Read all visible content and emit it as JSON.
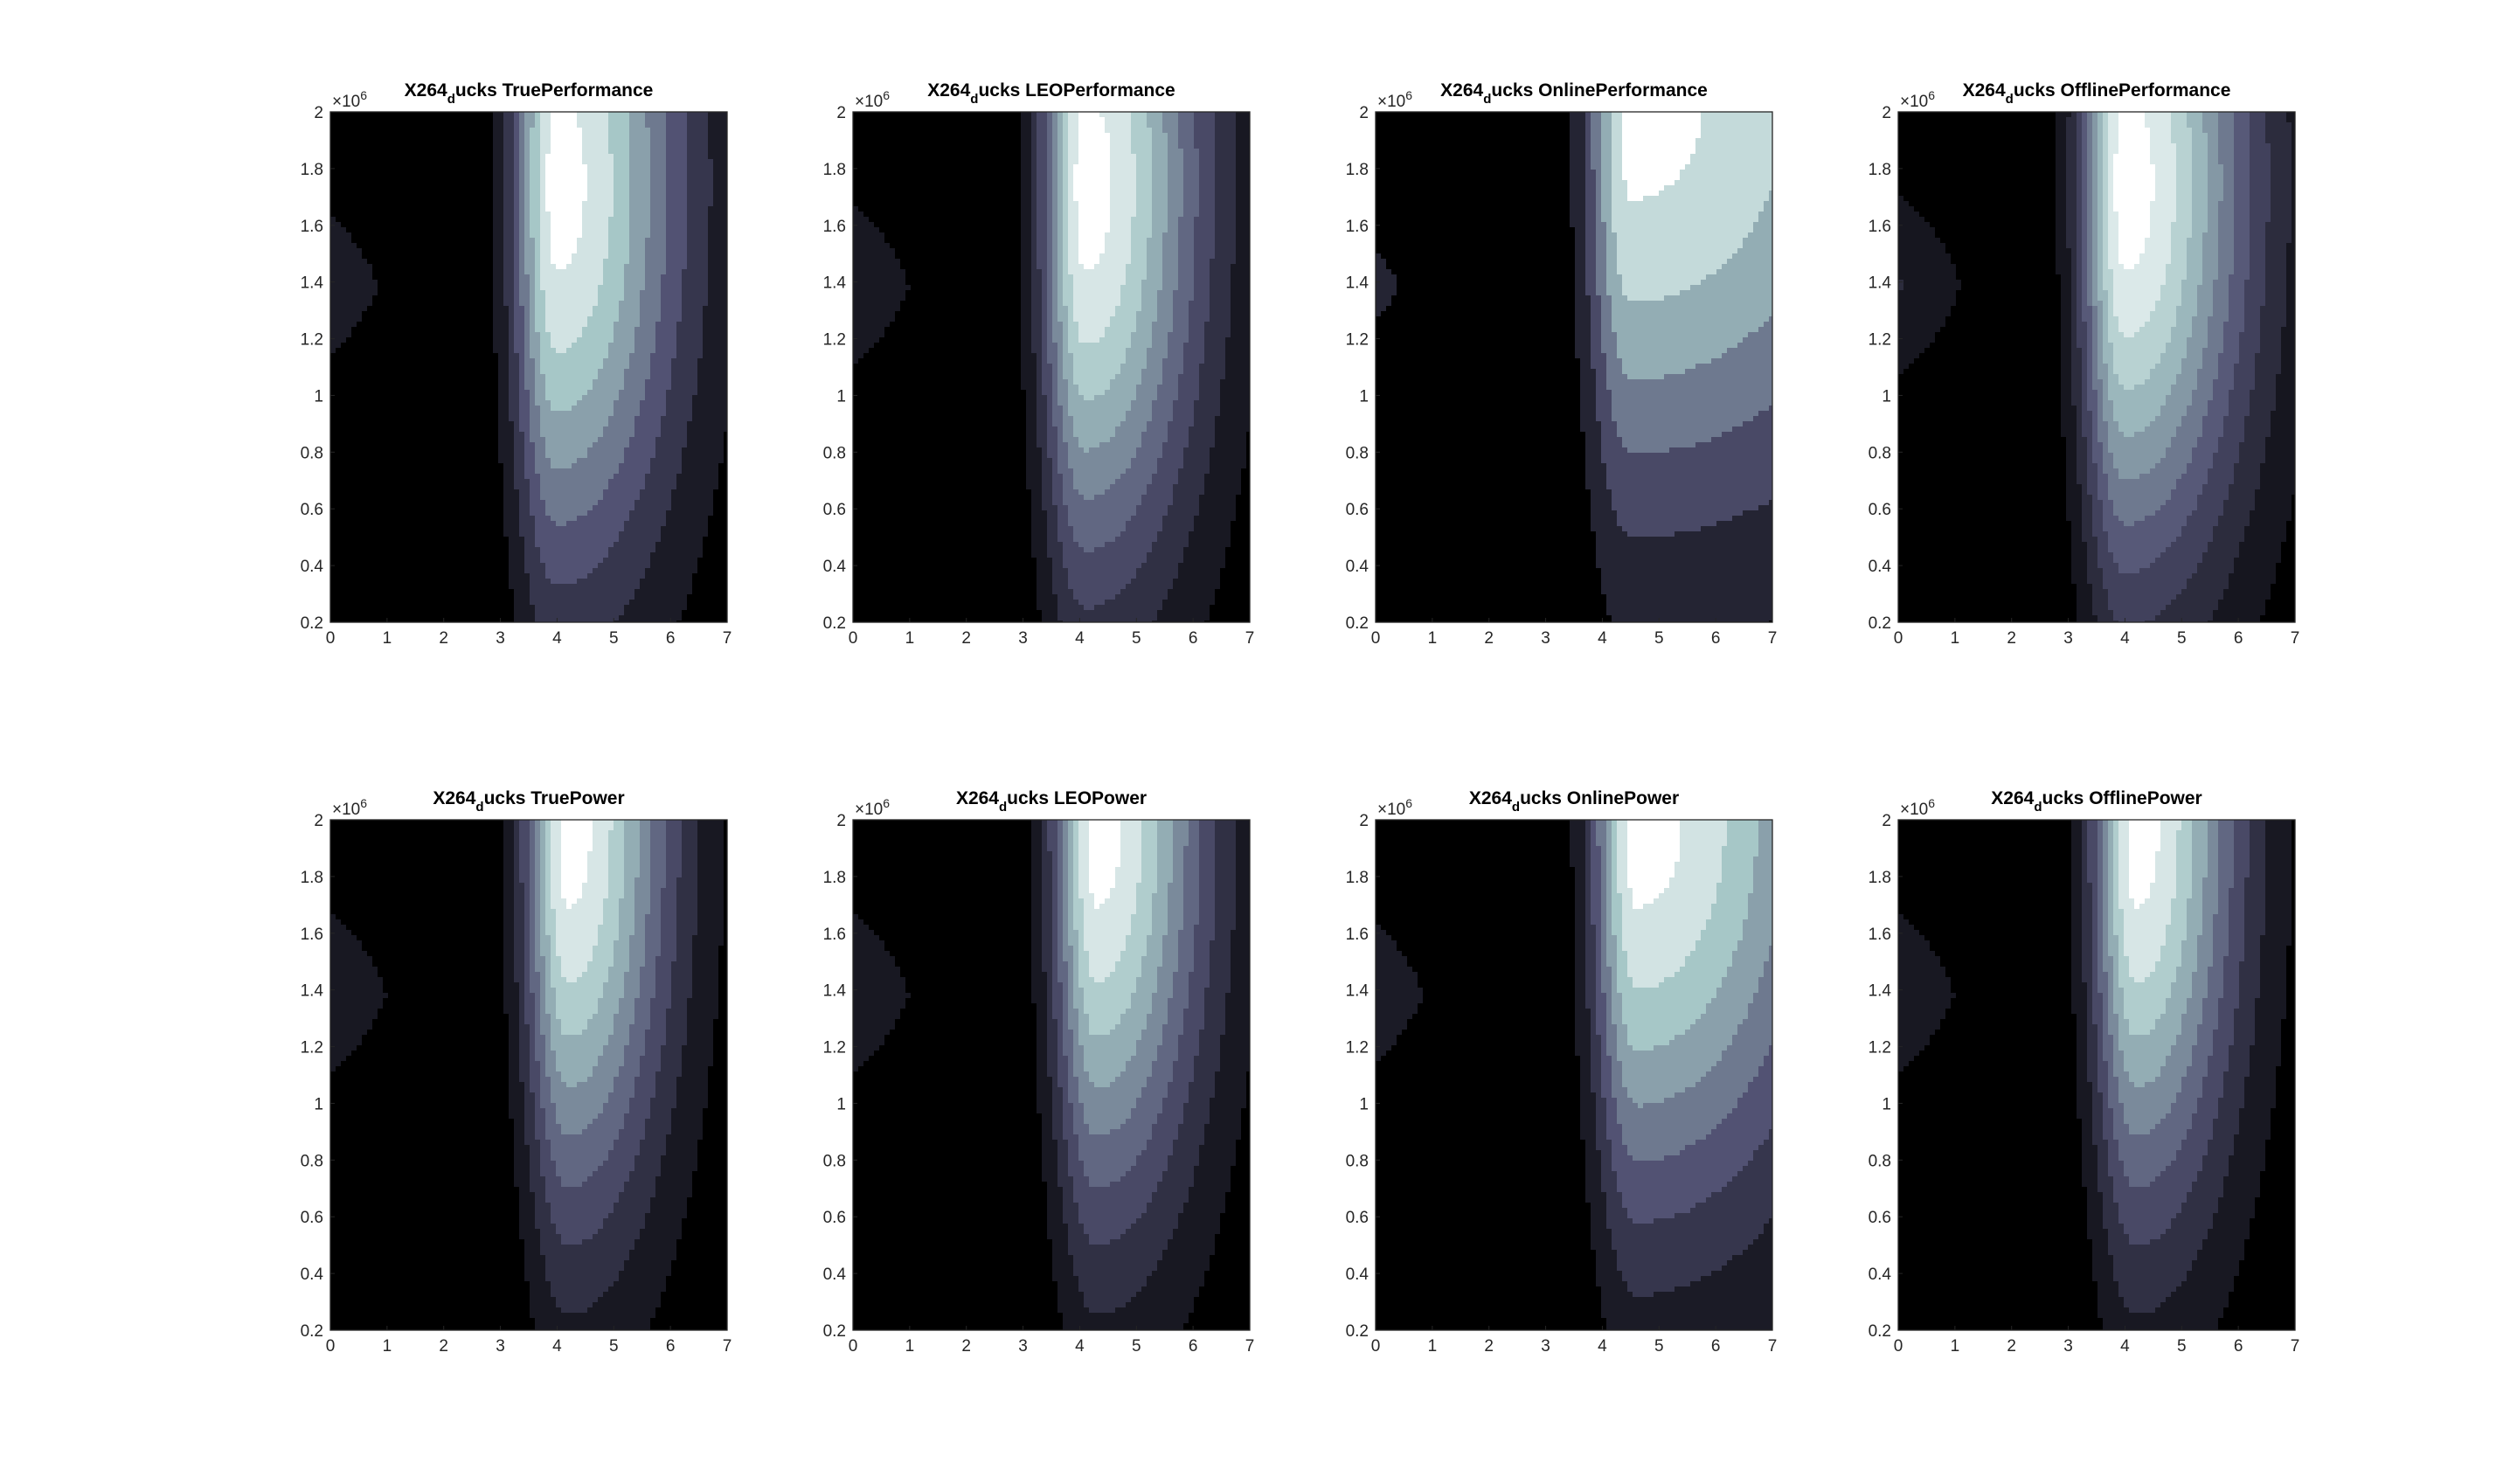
{
  "window_title": "",
  "chart_data": [
    {
      "type": "contour",
      "title_prefix": "X264",
      "title_subscript": "d",
      "title_suffix": "ucks TruePerformance",
      "xlabel": "",
      "ylabel": "",
      "xlim": [
        0,
        7
      ],
      "ylim": [
        200000,
        2000000
      ],
      "xticks": [
        "0",
        "1",
        "2",
        "3",
        "4",
        "5",
        "6",
        "7"
      ],
      "yticks": [
        "0.2",
        "0.4",
        "0.6",
        "0.8",
        "1",
        "1.2",
        "1.4",
        "1.6",
        "1.8",
        "2"
      ],
      "y_exponent_base": "×10",
      "y_exponent": "6",
      "colormap": "bone",
      "ridge_x": 4.0,
      "peak_y": 1750000,
      "spread_right": 1.6,
      "levels": 8
    },
    {
      "type": "contour",
      "title_prefix": "X264",
      "title_subscript": "d",
      "title_suffix": "ucks LEOPerformance",
      "xlabel": "",
      "ylabel": "",
      "xlim": [
        0,
        7
      ],
      "ylim": [
        200000,
        2000000
      ],
      "xticks": [
        "0",
        "1",
        "2",
        "3",
        "4",
        "5",
        "6",
        "7"
      ],
      "yticks": [
        "0.2",
        "0.4",
        "0.6",
        "0.8",
        "1",
        "1.2",
        "1.4",
        "1.6",
        "1.8",
        "2"
      ],
      "y_exponent_base": "×10",
      "y_exponent": "6",
      "colormap": "bone",
      "ridge_x": 4.1,
      "peak_y": 1750000,
      "spread_right": 1.5,
      "levels": 9
    },
    {
      "type": "contour",
      "title_prefix": "X264",
      "title_subscript": "d",
      "title_suffix": "ucks OnlinePerformance",
      "xlabel": "",
      "ylabel": "",
      "xlim": [
        0,
        7
      ],
      "ylim": [
        200000,
        2000000
      ],
      "xticks": [
        "0",
        "1",
        "2",
        "3",
        "4",
        "5",
        "6",
        "7"
      ],
      "yticks": [
        "0.2",
        "0.4",
        "0.6",
        "0.8",
        "1",
        "1.2",
        "1.4",
        "1.6",
        "1.8",
        "2"
      ],
      "y_exponent_base": "×10",
      "y_exponent": "6",
      "colormap": "bone",
      "ridge_x": 4.5,
      "peak_y": 2000000,
      "spread_right": 4.0,
      "levels": 6
    },
    {
      "type": "contour",
      "title_prefix": "X264",
      "title_subscript": "d",
      "title_suffix": "ucks OfflinePerformance",
      "xlabel": "",
      "ylabel": "",
      "xlim": [
        0,
        7
      ],
      "ylim": [
        200000,
        2000000
      ],
      "xticks": [
        "0",
        "1",
        "2",
        "3",
        "4",
        "5",
        "6",
        "7"
      ],
      "yticks": [
        "0.2",
        "0.4",
        "0.6",
        "0.8",
        "1",
        "1.2",
        "1.4",
        "1.6",
        "1.8",
        "2"
      ],
      "y_exponent_base": "×10",
      "y_exponent": "6",
      "colormap": "bone",
      "ridge_x": 4.0,
      "peak_y": 1750000,
      "spread_right": 1.6,
      "levels": 10
    },
    {
      "type": "contour",
      "title_prefix": "X264",
      "title_subscript": "d",
      "title_suffix": "ucks TruePower",
      "xlabel": "",
      "ylabel": "",
      "xlim": [
        0,
        7
      ],
      "ylim": [
        200000,
        2000000
      ],
      "xticks": [
        "0",
        "1",
        "2",
        "3",
        "4",
        "5",
        "6",
        "7"
      ],
      "yticks": [
        "0.2",
        "0.4",
        "0.6",
        "0.8",
        "1",
        "1.2",
        "1.4",
        "1.6",
        "1.8",
        "2"
      ],
      "y_exponent_base": "×10",
      "y_exponent": "6",
      "colormap": "bone",
      "ridge_x": 4.2,
      "peak_y": 2000000,
      "spread_right": 1.3,
      "levels": 9
    },
    {
      "type": "contour",
      "title_prefix": "X264",
      "title_subscript": "d",
      "title_suffix": "ucks LEOPower",
      "xlabel": "",
      "ylabel": "",
      "xlim": [
        0,
        7
      ],
      "ylim": [
        200000,
        2000000
      ],
      "xticks": [
        "0",
        "1",
        "2",
        "3",
        "4",
        "5",
        "6",
        "7"
      ],
      "yticks": [
        "0.2",
        "0.4",
        "0.6",
        "0.8",
        "1",
        "1.2",
        "1.4",
        "1.6",
        "1.8",
        "2"
      ],
      "y_exponent_base": "×10",
      "y_exponent": "6",
      "colormap": "bone",
      "ridge_x": 4.3,
      "peak_y": 2000000,
      "spread_right": 1.4,
      "levels": 9
    },
    {
      "type": "contour",
      "title_prefix": "X264",
      "title_subscript": "d",
      "title_suffix": "ucks OnlinePower",
      "xlabel": "",
      "ylabel": "",
      "xlim": [
        0,
        7
      ],
      "ylim": [
        200000,
        2000000
      ],
      "xticks": [
        "0",
        "1",
        "2",
        "3",
        "4",
        "5",
        "6",
        "7"
      ],
      "yticks": [
        "0.2",
        "0.4",
        "0.6",
        "0.8",
        "1",
        "1.2",
        "1.4",
        "1.6",
        "1.8",
        "2"
      ],
      "y_exponent_base": "×10",
      "y_exponent": "6",
      "colormap": "bone",
      "ridge_x": 4.6,
      "peak_y": 2000000,
      "spread_right": 2.6,
      "levels": 8
    },
    {
      "type": "contour",
      "title_prefix": "X264",
      "title_subscript": "d",
      "title_suffix": "ucks OfflinePower",
      "xlabel": "",
      "ylabel": "",
      "xlim": [
        0,
        7
      ],
      "ylim": [
        200000,
        2000000
      ],
      "xticks": [
        "0",
        "1",
        "2",
        "3",
        "4",
        "5",
        "6",
        "7"
      ],
      "yticks": [
        "0.2",
        "0.4",
        "0.6",
        "0.8",
        "1",
        "1.2",
        "1.4",
        "1.6",
        "1.8",
        "2"
      ],
      "y_exponent_base": "×10",
      "y_exponent": "6",
      "colormap": "bone",
      "ridge_x": 4.2,
      "peak_y": 2000000,
      "spread_right": 1.3,
      "levels": 9
    }
  ]
}
